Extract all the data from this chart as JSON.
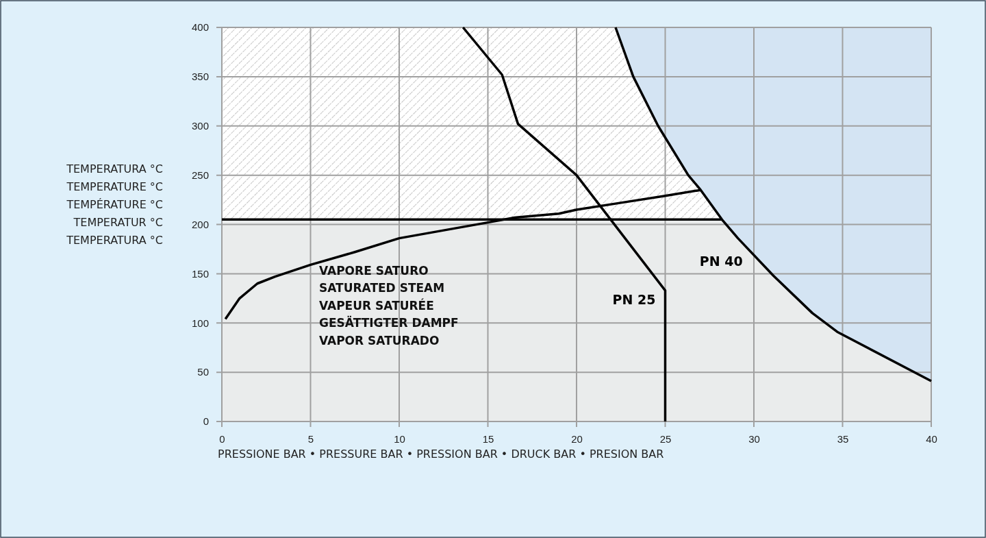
{
  "chart_data": {
    "type": "line",
    "xlabel": "PRESSIONE BAR • PRESSURE BAR • PRESSION BAR • DRUCK BAR • PRESION BAR",
    "ylabel": "TEMPERATURA °C\nTEMPERATURE °C\nTEMPÉRATURE °C\nTEMPERATUR °C\nTEMPERATURA °C",
    "xlim": [
      0,
      40
    ],
    "xticks": [
      0,
      5,
      10,
      15,
      20,
      25,
      30,
      35,
      40
    ],
    "ylim": [
      0,
      400
    ],
    "yticks": [
      0,
      50,
      100,
      150,
      200,
      250,
      300,
      350,
      400
    ],
    "grid": true,
    "legend": false,
    "marker": "none",
    "line_style": "solid",
    "series": [
      {
        "name": "PN 25",
        "color": "#000000",
        "x": [
          13.6,
          15.8,
          16.7,
          20,
          25,
          25
        ],
        "values": [
          400,
          352,
          302,
          250,
          133,
          0
        ]
      },
      {
        "name": "PN 40",
        "color": "#000000",
        "x": [
          22.2,
          23.2,
          24.6,
          26.3,
          27,
          28.2,
          29.1,
          31.1,
          33.3,
          34.7,
          40
        ],
        "values": [
          400,
          350,
          300,
          250,
          235,
          205,
          186,
          148,
          110,
          91,
          41
        ],
        "lower": [
          400,
          350,
          300,
          250,
          235,
          205,
          186,
          148,
          110,
          91,
          41
        ],
        "upper": [
          400,
          400,
          400,
          400,
          400,
          400,
          400,
          400,
          400,
          400,
          400
        ]
      },
      {
        "color": "#000000",
        "x": [
          0.2,
          1,
          2,
          3,
          5,
          7.5,
          10,
          12.5,
          15,
          16.5,
          19,
          20,
          22.5,
          25,
          27
        ],
        "values": [
          104,
          125,
          140,
          147,
          159,
          172,
          186,
          194,
          202,
          207,
          211,
          215,
          222,
          229,
          235
        ]
      },
      {
        "color": "#000000",
        "x": [
          0,
          22.2,
          23.2,
          24.6,
          26.3,
          27,
          28.2
        ],
        "values": [
          205,
          205,
          205,
          205,
          205,
          205,
          205
        ],
        "lower": [
          205,
          205,
          205,
          205,
          205,
          205,
          205
        ],
        "upper": [
          400,
          400,
          350,
          300,
          250,
          235,
          205
        ]
      }
    ],
    "annotations": [
      "VAPORE SATURO\nSATURATED STEAM\nVAPEUR SATURÉE\nGESÄTTIGTER DAMPF\nVAPOR SATURADO"
    ]
  }
}
